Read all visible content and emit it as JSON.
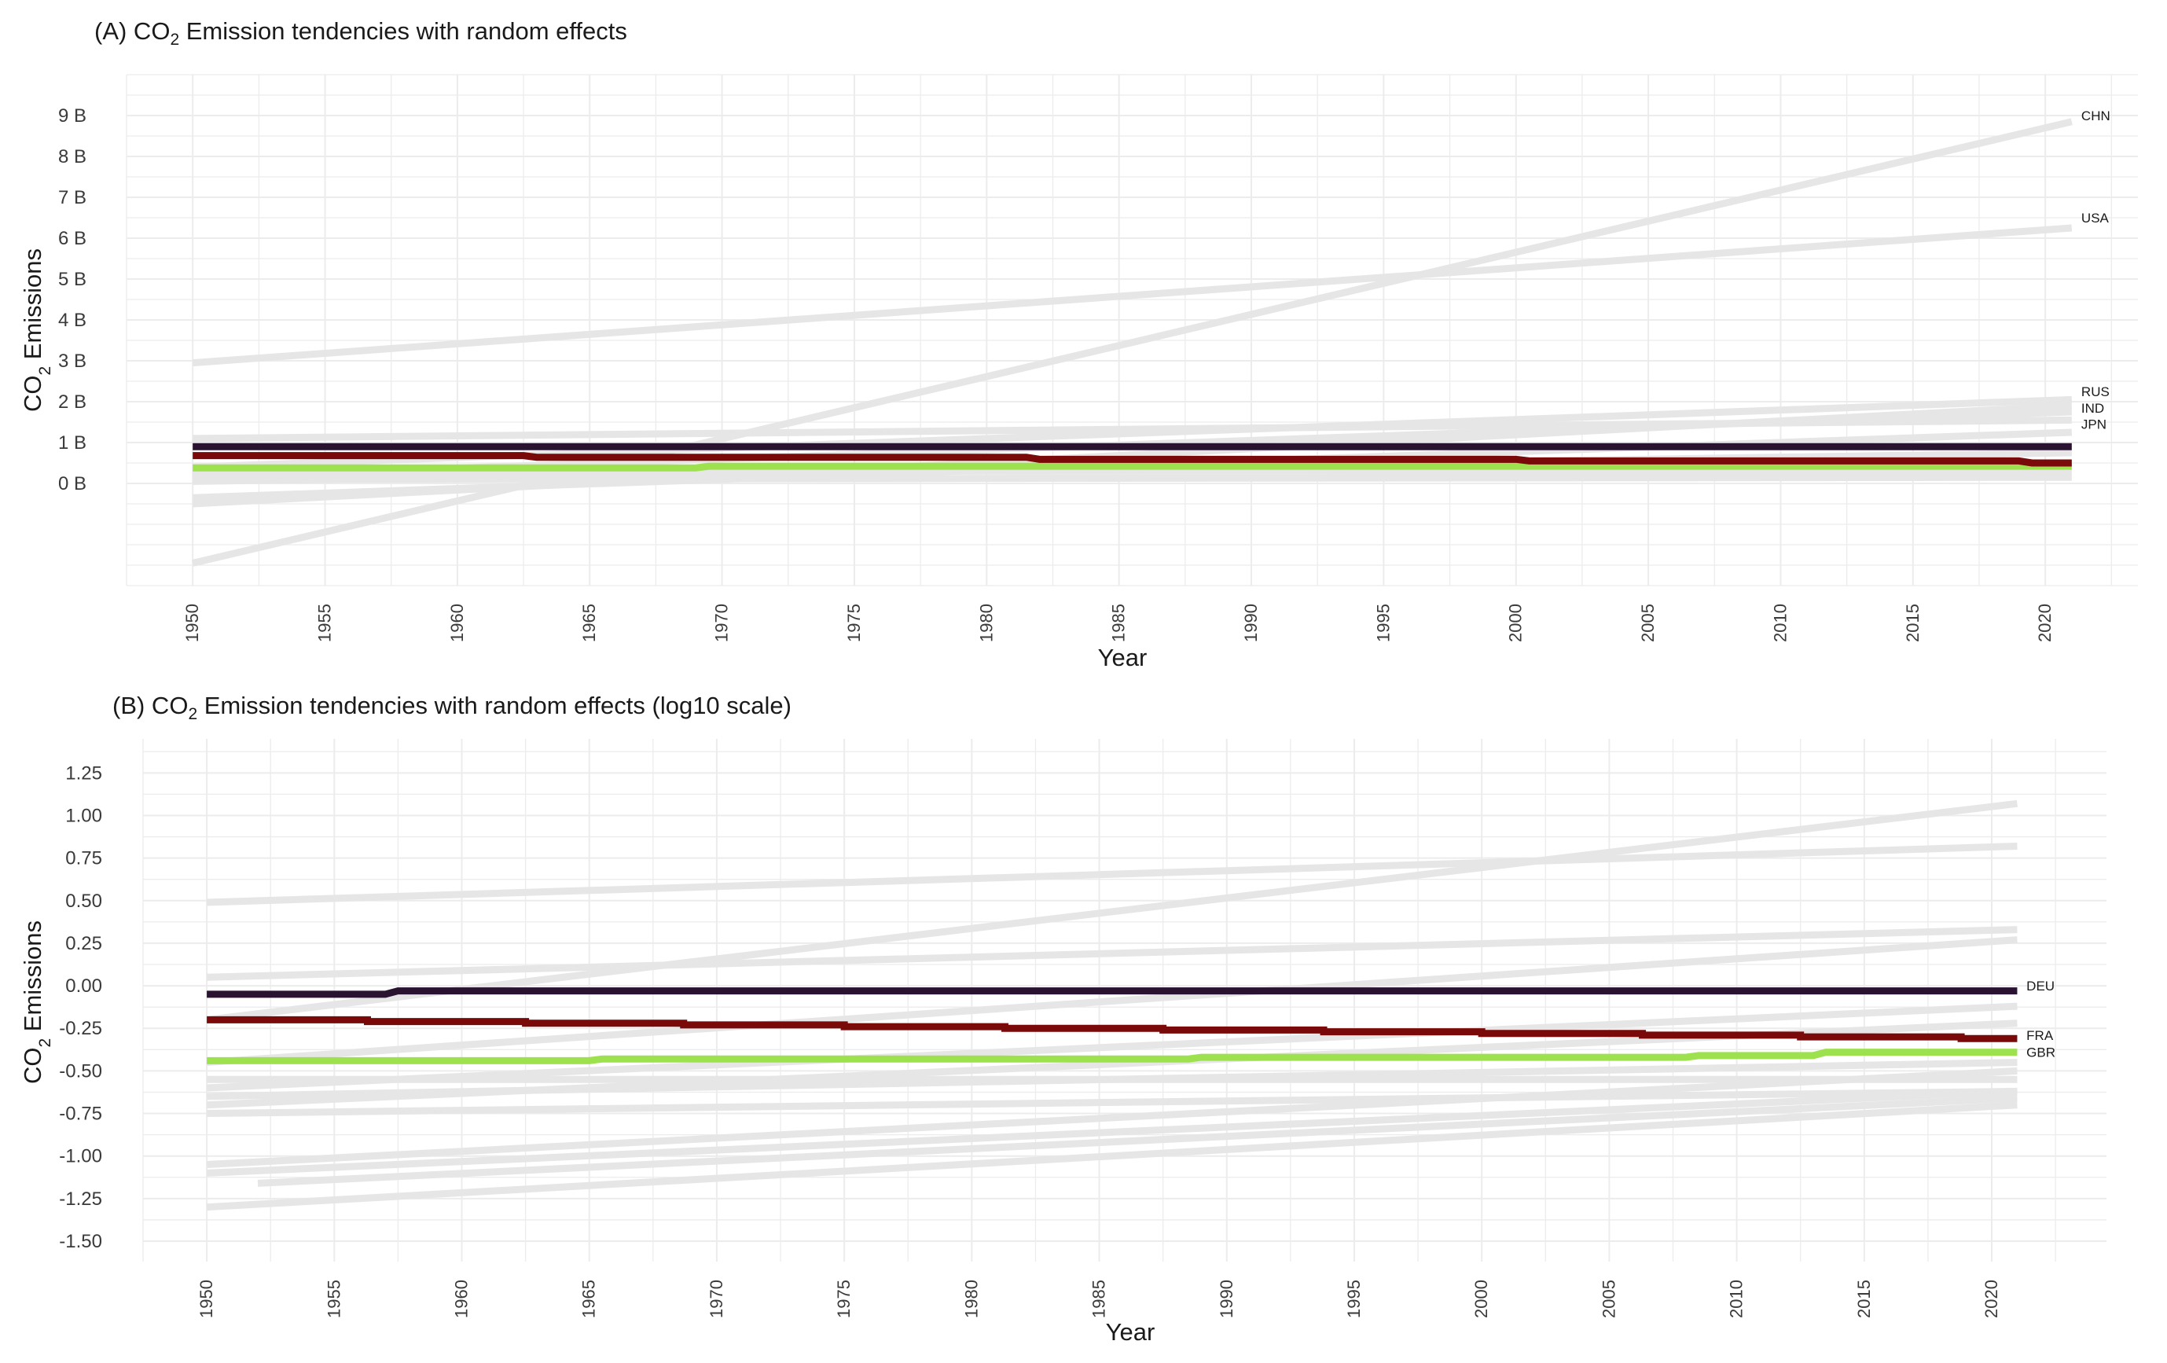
{
  "chart_data": [
    {
      "id": "A",
      "type": "line",
      "title_prefix": "(A) CO",
      "title_sub": "2",
      "title_suffix": " Emission tendencies with random effects",
      "xlabel": "Year",
      "ylabel_prefix": "CO",
      "ylabel_sub": "2",
      "ylabel_suffix": " Emissions",
      "xlim": [
        1947.5,
        2023.5
      ],
      "ylim": [
        -2.5,
        10.0
      ],
      "x_ticks": [
        1950,
        1955,
        1960,
        1965,
        1970,
        1975,
        1980,
        1985,
        1990,
        1995,
        2000,
        2005,
        2010,
        2015,
        2020
      ],
      "y_ticks": [
        0,
        1,
        2,
        3,
        4,
        5,
        6,
        7,
        8,
        9
      ],
      "y_tick_labels": [
        "0 B",
        "1 B",
        "2 B",
        "3 B",
        "4 B",
        "5 B",
        "6 B",
        "7 B",
        "8 B",
        "9 B"
      ],
      "grid": true,
      "background_color": "#e6e6e6",
      "background_lines": [
        {
          "name": "CHN",
          "x": [
            1950,
            2021
          ],
          "y": [
            -1.95,
            8.85
          ]
        },
        {
          "name": "USA",
          "x": [
            1950,
            2021
          ],
          "y": [
            2.95,
            6.25
          ]
        },
        {
          "name": "RUS",
          "x": [
            1950,
            2021
          ],
          "y": [
            0.4,
            2.05
          ]
        },
        {
          "name": "IND",
          "x": [
            1950,
            2021
          ],
          "y": [
            -0.5,
            1.9
          ]
        },
        {
          "name": "JPN",
          "x": [
            1950,
            2021
          ],
          "y": [
            1.1,
            1.55
          ]
        },
        {
          "x": [
            1950,
            2021
          ],
          "y": [
            0.15,
            1.75
          ]
        },
        {
          "x": [
            1950,
            2021
          ],
          "y": [
            -0.35,
            1.25
          ]
        },
        {
          "x": [
            1950,
            2021
          ],
          "y": [
            0.05,
            0.75
          ]
        },
        {
          "x": [
            1950,
            2021
          ],
          "y": [
            0.2,
            0.5
          ]
        },
        {
          "x": [
            1950,
            2021
          ],
          "y": [
            0.3,
            0.3
          ]
        },
        {
          "x": [
            1950,
            2021
          ],
          "y": [
            0.1,
            0.15
          ]
        }
      ],
      "labels": [
        {
          "text": "CHN",
          "x": 2021.3,
          "y": 9.0
        },
        {
          "text": "USA",
          "x": 2021.3,
          "y": 6.5
        },
        {
          "text": "RUS",
          "x": 2021.3,
          "y": 2.25
        },
        {
          "text": "IND",
          "x": 2021.3,
          "y": 1.85
        },
        {
          "text": "JPN",
          "x": 2021.3,
          "y": 1.45
        }
      ],
      "series": [
        {
          "color": "#9de24e",
          "x": [
            1950,
            1969,
            1969.5,
            2021
          ],
          "y": [
            0.38,
            0.38,
            0.42,
            0.42
          ]
        },
        {
          "color": "#7a0a0a",
          "x": [
            1950,
            1962.5,
            1963,
            1981.5,
            1982,
            2000,
            2000.5,
            2019,
            2019.5,
            2021
          ],
          "y": [
            0.68,
            0.68,
            0.64,
            0.64,
            0.59,
            0.59,
            0.55,
            0.55,
            0.5,
            0.5
          ]
        },
        {
          "color": "#2a1330",
          "x": [
            1950,
            2021
          ],
          "y": [
            0.9,
            0.9
          ]
        }
      ]
    },
    {
      "id": "B",
      "type": "line",
      "title_prefix": "(B) CO",
      "title_sub": "2",
      "title_suffix": " Emission tendencies with random effects (log10 scale)",
      "xlabel": "Year",
      "ylabel_prefix": "CO",
      "ylabel_sub": "2",
      "ylabel_suffix": " Emissions",
      "xlim": [
        1947.5,
        2024.5
      ],
      "ylim": [
        -1.62,
        1.45
      ],
      "x_ticks": [
        1950,
        1955,
        1960,
        1965,
        1970,
        1975,
        1980,
        1985,
        1990,
        1995,
        2000,
        2005,
        2010,
        2015,
        2020
      ],
      "y_ticks": [
        -1.5,
        -1.25,
        -1.0,
        -0.75,
        -0.5,
        -0.25,
        0.0,
        0.25,
        0.5,
        0.75,
        1.0,
        1.25
      ],
      "y_tick_labels": [
        "-1.50",
        "-1.25",
        "-1.00",
        "-0.75",
        "-0.50",
        "-0.25",
        "0.00",
        "0.25",
        "0.50",
        "0.75",
        "1.00",
        "1.25"
      ],
      "grid": true,
      "background_color": "#e6e6e6",
      "background_lines": [
        {
          "x": [
            1950,
            2021
          ],
          "y": [
            -0.2,
            1.07
          ]
        },
        {
          "x": [
            1950,
            2021
          ],
          "y": [
            0.49,
            0.82
          ]
        },
        {
          "x": [
            1950,
            2021
          ],
          "y": [
            0.05,
            0.33
          ]
        },
        {
          "x": [
            1950,
            2021
          ],
          "y": [
            -0.45,
            0.27
          ]
        },
        {
          "x": [
            1950,
            2021
          ],
          "y": [
            -0.6,
            -0.12
          ]
        },
        {
          "x": [
            1950,
            2021
          ],
          "y": [
            -0.7,
            -0.22
          ]
        },
        {
          "x": [
            1950,
            2021
          ],
          "y": [
            -0.65,
            -0.45
          ]
        },
        {
          "x": [
            1950,
            2021
          ],
          "y": [
            -0.75,
            -0.62
          ]
        },
        {
          "x": [
            1950,
            2021
          ],
          "y": [
            -1.05,
            -0.5
          ]
        },
        {
          "x": [
            1950,
            2021
          ],
          "y": [
            -1.1,
            -0.62
          ]
        },
        {
          "x": [
            1952,
            2021
          ],
          "y": [
            -1.16,
            -0.66
          ]
        },
        {
          "x": [
            1950,
            2021
          ],
          "y": [
            -1.3,
            -0.7
          ]
        },
        {
          "x": [
            1950,
            2021
          ],
          "y": [
            -0.55,
            -0.55
          ]
        }
      ],
      "labels": [
        {
          "text": "DEU",
          "x": 2021.3,
          "y": 0.0
        },
        {
          "text": "FRA",
          "x": 2021.3,
          "y": -0.29
        },
        {
          "text": "GBR",
          "x": 2021.3,
          "y": -0.39
        }
      ],
      "series": [
        {
          "color": "#9de24e",
          "x": [
            1950,
            1965,
            1965.5,
            1988.5,
            1989,
            2008,
            2008.5,
            2013,
            2013.5,
            2021
          ],
          "y": [
            -0.44,
            -0.44,
            -0.43,
            -0.43,
            -0.42,
            -0.42,
            -0.41,
            -0.41,
            -0.39,
            -0.39
          ]
        },
        {
          "color": "#7a0a0a",
          "x": [
            1950,
            1956.3,
            1956.3,
            1962.5,
            1962.5,
            1968.7,
            1968.7,
            1975,
            1975,
            1981.3,
            1981.3,
            1987.5,
            1987.5,
            1993.8,
            1993.8,
            2000,
            2000,
            2006.3,
            2006.3,
            2012.5,
            2012.5,
            2018.8,
            2018.8,
            2021
          ],
          "y": [
            -0.2,
            -0.2,
            -0.21,
            -0.21,
            -0.22,
            -0.22,
            -0.23,
            -0.23,
            -0.24,
            -0.24,
            -0.25,
            -0.25,
            -0.26,
            -0.26,
            -0.27,
            -0.27,
            -0.28,
            -0.28,
            -0.29,
            -0.29,
            -0.3,
            -0.3,
            -0.31,
            -0.31
          ]
        },
        {
          "color": "#2a1330",
          "x": [
            1950,
            1957,
            1957.5,
            2021
          ],
          "y": [
            -0.05,
            -0.05,
            -0.03,
            -0.03
          ]
        }
      ]
    }
  ]
}
